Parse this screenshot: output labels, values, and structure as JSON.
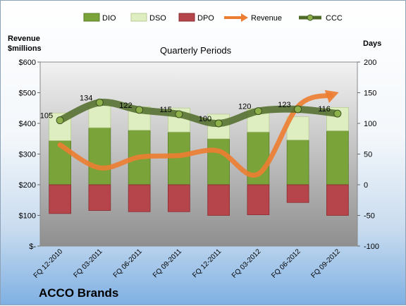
{
  "company": "ACCO Brands",
  "subtitle": "Quarterly Periods",
  "left_axis_title": [
    "Revenue",
    "$millions"
  ],
  "right_axis_title": "Days",
  "colors": {
    "dio": "#7aa33a",
    "dso": "#dfeec0",
    "dpo": "#b5444b",
    "revenue": "#ed7d31",
    "ccc": "#4f6b28",
    "plot_top": "#f2f2f2",
    "plot_bottom": "#8f8f8f"
  },
  "chart_data": {
    "type": "bar",
    "categories": [
      "FQ 12-2010",
      "FQ 03-2011",
      "FQ 06-2011",
      "FQ 09-2011",
      "FQ 12-2011",
      "FQ 03-2012",
      "FQ 06-2012",
      "FQ 09-2012"
    ],
    "legend_position": "top",
    "grid": false,
    "series": [
      {
        "name": "DIO",
        "type": "stacked-bar",
        "axis": "right",
        "values": [
          72,
          93,
          89,
          86,
          75,
          86,
          73,
          88
        ]
      },
      {
        "name": "DSO",
        "type": "stacked-bar",
        "axis": "right",
        "values": [
          45,
          39,
          38,
          39,
          40,
          38,
          38,
          38
        ]
      },
      {
        "name": "DPO",
        "type": "stacked-bar",
        "axis": "right",
        "values": [
          -47,
          -42,
          -44,
          -44,
          -50,
          -49,
          -29,
          -50
        ]
      },
      {
        "name": "Revenue",
        "type": "line",
        "axis": "left",
        "values": [
          330,
          255,
          290,
          295,
          310,
          235,
          455,
          500
        ]
      },
      {
        "name": "CCC",
        "type": "line",
        "axis": "right",
        "values": [
          105,
          134,
          122,
          115,
          100,
          120,
          123,
          116
        ],
        "labels": [
          "105",
          "134",
          "122",
          "115",
          "100",
          "120",
          "123",
          "116"
        ]
      }
    ],
    "left_axis": {
      "min": 0,
      "max": 600,
      "step": 100,
      "tick_labels": [
        "$-",
        "$100",
        "$200",
        "$300",
        "$400",
        "$500",
        "$600"
      ]
    },
    "right_axis": {
      "min": -100,
      "max": 200,
      "step": 50,
      "tick_labels": [
        "-100",
        "-50",
        "0",
        "50",
        "100",
        "150",
        "200"
      ]
    }
  }
}
